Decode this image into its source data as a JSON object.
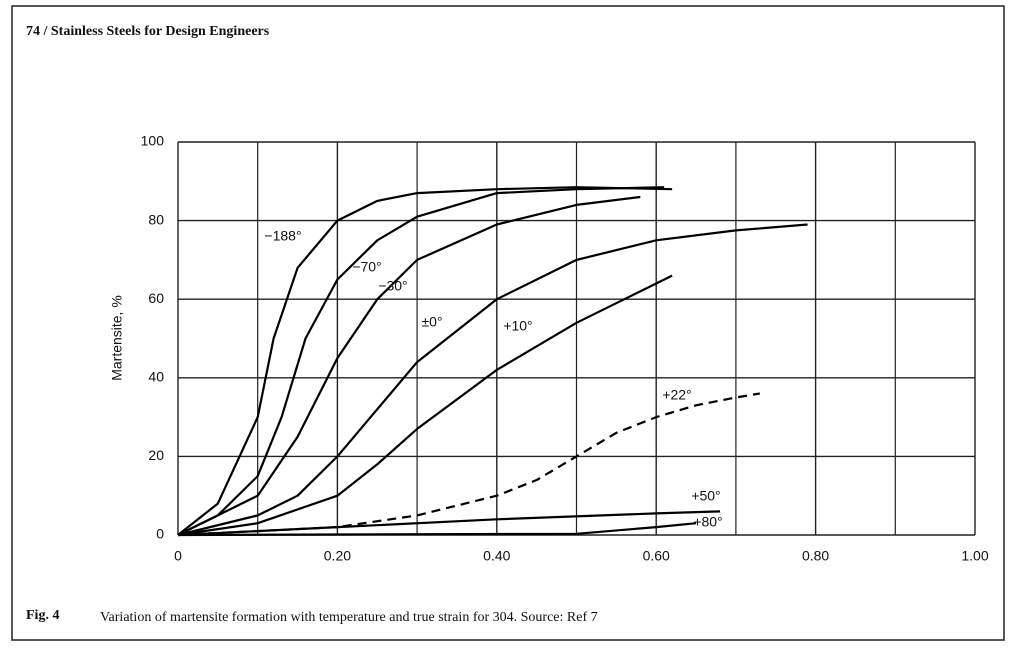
{
  "header": {
    "title": "74 / Stainless Steels for Design Engineers"
  },
  "chart_data": {
    "type": "line",
    "ylabel": "Martensite, %",
    "xlim": [
      0,
      1
    ],
    "ylim": [
      0,
      100
    ],
    "xticks": [
      0,
      {
        "value": 0.2,
        "label": "0.20"
      },
      {
        "value": 0.4,
        "label": "0.40"
      },
      {
        "value": 0.6,
        "label": "0.60"
      },
      {
        "value": 0.8,
        "label": "0.80"
      },
      {
        "value": 1,
        "label": "1.00"
      }
    ],
    "xminor": [
      0.1,
      0.3,
      0.5,
      0.7,
      0.9
    ],
    "yticks": [
      0,
      20,
      40,
      60,
      80,
      100
    ],
    "grid": true,
    "series": [
      {
        "name": "−188°",
        "color": "#000000",
        "x": [
          0,
          0.05,
          0.1,
          0.12,
          0.15,
          0.2,
          0.25,
          0.3,
          0.4,
          0.5,
          0.62
        ],
        "values": [
          0,
          8,
          30,
          50,
          68,
          80,
          85,
          87,
          88,
          88.5,
          88
        ]
      },
      {
        "name": "−70°",
        "color": "#000000",
        "x": [
          0,
          0.05,
          0.1,
          0.13,
          0.16,
          0.2,
          0.25,
          0.3,
          0.4,
          0.5,
          0.61
        ],
        "values": [
          0,
          5,
          15,
          30,
          50,
          65,
          75,
          81,
          87,
          88,
          88.5
        ]
      },
      {
        "name": "−30°",
        "color": "#000000",
        "x": [
          0,
          0.1,
          0.15,
          0.2,
          0.25,
          0.3,
          0.4,
          0.5,
          0.58
        ],
        "values": [
          0,
          10,
          25,
          45,
          60,
          70,
          79,
          84,
          86
        ]
      },
      {
        "name": "±0°",
        "color": "#000000",
        "x": [
          0,
          0.1,
          0.15,
          0.2,
          0.25,
          0.3,
          0.4,
          0.5,
          0.6,
          0.7,
          0.79
        ],
        "values": [
          0,
          5,
          10,
          20,
          32,
          44,
          60,
          70,
          75,
          77.5,
          79
        ]
      },
      {
        "name": "+10°",
        "color": "#000000",
        "x": [
          0,
          0.1,
          0.2,
          0.25,
          0.3,
          0.4,
          0.5,
          0.6,
          0.62
        ],
        "values": [
          0,
          3,
          10,
          18,
          27,
          42,
          54,
          64,
          66
        ]
      },
      {
        "name": "+22°",
        "color": "#000000",
        "dashed": true,
        "x": [
          0,
          0.2,
          0.3,
          0.4,
          0.45,
          0.5,
          0.55,
          0.6,
          0.65,
          0.7,
          0.73
        ],
        "values": [
          0,
          2,
          5,
          10,
          14,
          20,
          26,
          30,
          33,
          35,
          36
        ]
      },
      {
        "name": "+50°",
        "color": "#000000",
        "x": [
          0,
          0.2,
          0.4,
          0.6,
          0.68
        ],
        "values": [
          0,
          2,
          4,
          5.5,
          6
        ]
      },
      {
        "name": "+80°",
        "color": "#000000",
        "x": [
          0,
          0.5,
          0.6,
          0.65
        ],
        "values": [
          0,
          0.3,
          2,
          3
        ]
      }
    ]
  },
  "caption": {
    "label": "Fig. 4",
    "text": "Variation of martensite formation with temperature and true strain for 304. Source: Ref 7"
  }
}
